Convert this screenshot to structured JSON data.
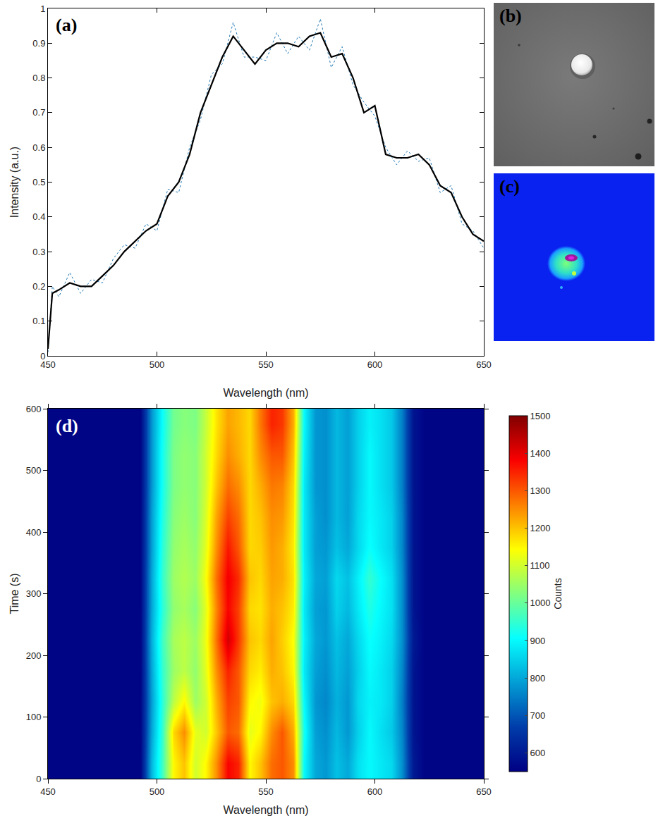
{
  "chart_data": [
    {
      "type": "line",
      "annotations": [
        "(a)"
      ],
      "x_label": "Wavelength (nm)",
      "y_label": "Intensity (a.u.)",
      "x": [
        450,
        452,
        455,
        460,
        465,
        470,
        475,
        480,
        485,
        490,
        495,
        500,
        505,
        510,
        515,
        520,
        525,
        530,
        535,
        540,
        545,
        550,
        555,
        560,
        565,
        570,
        575,
        580,
        585,
        590,
        595,
        600,
        605,
        610,
        615,
        620,
        625,
        630,
        635,
        640,
        645,
        650
      ],
      "series": [
        {
          "color": "#1f77b4",
          "line_style": "dotted",
          "values": [
            0.01,
            0.2,
            0.17,
            0.24,
            0.18,
            0.22,
            0.21,
            0.28,
            0.32,
            0.31,
            0.38,
            0.36,
            0.48,
            0.47,
            0.6,
            0.68,
            0.81,
            0.84,
            0.96,
            0.86,
            0.86,
            0.85,
            0.93,
            0.87,
            0.92,
            0.88,
            0.97,
            0.83,
            0.89,
            0.78,
            0.73,
            0.69,
            0.6,
            0.55,
            0.59,
            0.56,
            0.57,
            0.47,
            0.49,
            0.38,
            0.36,
            0.31
          ]
        },
        {
          "color": "#000000",
          "line_style": "solid",
          "values": [
            0.02,
            0.18,
            0.19,
            0.21,
            0.2,
            0.2,
            0.23,
            0.26,
            0.3,
            0.33,
            0.36,
            0.38,
            0.46,
            0.5,
            0.58,
            0.7,
            0.78,
            0.86,
            0.92,
            0.88,
            0.84,
            0.88,
            0.9,
            0.9,
            0.89,
            0.92,
            0.93,
            0.86,
            0.87,
            0.8,
            0.7,
            0.72,
            0.58,
            0.57,
            0.57,
            0.58,
            0.55,
            0.49,
            0.47,
            0.4,
            0.35,
            0.33
          ]
        }
      ],
      "xlim": [
        450,
        650
      ],
      "ylim": [
        0,
        1
      ],
      "xticks": [
        450,
        500,
        550,
        600,
        650
      ],
      "yticks": [
        0,
        0.1,
        0.2,
        0.3,
        0.4,
        0.5,
        0.6,
        0.7,
        0.8,
        0.9,
        1
      ],
      "grid": false
    },
    {
      "type": "heatmap",
      "annotations": [
        "(d)"
      ],
      "x_label": "Wavelength (nm)",
      "y_label": "Time (s)",
      "color": "Jet",
      "x": [
        452.5,
        457.5,
        462.5,
        467.5,
        472.5,
        477.5,
        482.5,
        487.5,
        492.5,
        497.5,
        502.5,
        507.5,
        512.5,
        517.5,
        522.5,
        527.5,
        532.5,
        537.5,
        542.5,
        547.5,
        552.5,
        557.5,
        562.5,
        567.5,
        572.5,
        577.5,
        582.5,
        587.5,
        592.5,
        597.5,
        602.5,
        607.5,
        612.5,
        617.5,
        622.5,
        627.5,
        632.5,
        637.5,
        642.5,
        647.5
      ],
      "y": [
        25,
        75,
        125,
        175,
        225,
        275,
        325,
        375,
        425,
        475,
        525,
        575
      ],
      "z": [
        [
          560,
          560,
          560,
          560,
          560,
          560,
          560,
          560,
          560,
          820,
          960,
          1150,
          1200,
          1100,
          1150,
          1250,
          1380,
          1350,
          1150,
          1200,
          1280,
          1300,
          1250,
          900,
          800,
          780,
          830,
          800,
          870,
          900,
          880,
          860,
          770,
          600,
          560,
          560,
          560,
          560,
          560,
          560
        ],
        [
          560,
          560,
          560,
          560,
          560,
          560,
          560,
          560,
          560,
          800,
          950,
          1180,
          1250,
          1120,
          1100,
          1200,
          1300,
          1280,
          1120,
          1150,
          1250,
          1300,
          1220,
          920,
          790,
          770,
          820,
          780,
          850,
          900,
          870,
          840,
          760,
          590,
          560,
          560,
          560,
          560,
          560,
          560
        ],
        [
          560,
          560,
          560,
          560,
          560,
          560,
          560,
          560,
          560,
          790,
          940,
          1080,
          1150,
          1050,
          1100,
          1220,
          1320,
          1300,
          1150,
          1130,
          1200,
          1220,
          1180,
          900,
          780,
          760,
          810,
          780,
          860,
          890,
          880,
          850,
          750,
          590,
          560,
          560,
          560,
          560,
          560,
          560
        ],
        [
          560,
          560,
          560,
          560,
          560,
          560,
          560,
          560,
          560,
          800,
          950,
          1050,
          1080,
          1040,
          1120,
          1250,
          1350,
          1300,
          1180,
          1160,
          1220,
          1200,
          1150,
          880,
          790,
          770,
          820,
          790,
          850,
          900,
          880,
          850,
          760,
          590,
          560,
          560,
          560,
          560,
          560,
          560
        ],
        [
          560,
          560,
          560,
          560,
          560,
          560,
          560,
          560,
          560,
          810,
          960,
          1060,
          1080,
          1050,
          1130,
          1280,
          1420,
          1330,
          1200,
          1180,
          1230,
          1190,
          1140,
          890,
          800,
          780,
          830,
          800,
          860,
          910,
          890,
          860,
          770,
          600,
          560,
          560,
          560,
          560,
          560,
          560
        ],
        [
          560,
          560,
          560,
          560,
          560,
          560,
          560,
          560,
          560,
          800,
          940,
          1040,
          1060,
          1030,
          1120,
          1260,
          1380,
          1320,
          1180,
          1170,
          1220,
          1200,
          1160,
          880,
          790,
          780,
          850,
          820,
          880,
          930,
          900,
          870,
          770,
          590,
          560,
          560,
          560,
          560,
          560,
          560
        ],
        [
          560,
          560,
          560,
          560,
          560,
          560,
          560,
          560,
          560,
          800,
          950,
          1050,
          1070,
          1050,
          1140,
          1280,
          1390,
          1340,
          1200,
          1180,
          1230,
          1220,
          1170,
          890,
          800,
          790,
          860,
          830,
          890,
          950,
          910,
          870,
          770,
          590,
          560,
          560,
          560,
          560,
          560,
          560
        ],
        [
          560,
          560,
          560,
          560,
          560,
          560,
          560,
          560,
          560,
          790,
          940,
          1040,
          1060,
          1040,
          1120,
          1250,
          1360,
          1300,
          1180,
          1190,
          1240,
          1220,
          1160,
          880,
          790,
          780,
          830,
          800,
          860,
          910,
          880,
          850,
          760,
          590,
          560,
          560,
          560,
          560,
          560,
          560
        ],
        [
          560,
          560,
          560,
          560,
          560,
          560,
          560,
          560,
          560,
          790,
          930,
          1030,
          1050,
          1030,
          1110,
          1230,
          1320,
          1280,
          1180,
          1200,
          1250,
          1240,
          1170,
          880,
          790,
          770,
          820,
          790,
          860,
          900,
          880,
          850,
          760,
          590,
          560,
          560,
          560,
          560,
          560,
          560
        ],
        [
          560,
          560,
          560,
          560,
          560,
          560,
          560,
          560,
          560,
          780,
          920,
          1020,
          1040,
          1030,
          1100,
          1200,
          1280,
          1250,
          1180,
          1220,
          1270,
          1260,
          1180,
          880,
          780,
          770,
          820,
          790,
          850,
          900,
          870,
          840,
          750,
          590,
          560,
          560,
          560,
          560,
          560,
          560
        ],
        [
          560,
          560,
          560,
          560,
          560,
          560,
          560,
          560,
          560,
          780,
          920,
          1020,
          1040,
          1030,
          1100,
          1180,
          1250,
          1220,
          1180,
          1250,
          1300,
          1300,
          1200,
          890,
          780,
          770,
          820,
          790,
          850,
          900,
          870,
          840,
          750,
          590,
          560,
          560,
          560,
          560,
          560,
          560
        ],
        [
          560,
          560,
          560,
          560,
          560,
          560,
          560,
          560,
          560,
          780,
          910,
          1010,
          1030,
          1020,
          1090,
          1170,
          1230,
          1210,
          1180,
          1270,
          1350,
          1330,
          1220,
          900,
          780,
          770,
          820,
          790,
          850,
          890,
          870,
          840,
          750,
          590,
          560,
          560,
          560,
          560,
          560,
          560
        ]
      ],
      "xlim": [
        450,
        650
      ],
      "ylim": [
        0,
        600
      ],
      "xticks": [
        450,
        500,
        550,
        600,
        650
      ],
      "yticks": [
        0,
        100,
        200,
        300,
        400,
        500,
        600
      ],
      "colorbar": {
        "title": "Counts",
        "range": [
          550,
          1500
        ],
        "ticks": [
          600,
          700,
          800,
          900,
          1000,
          1100,
          1200,
          1300,
          1400,
          1500
        ]
      },
      "grid": false
    }
  ],
  "images": [
    {
      "label": "(b)"
    },
    {
      "label": "(c)"
    }
  ]
}
